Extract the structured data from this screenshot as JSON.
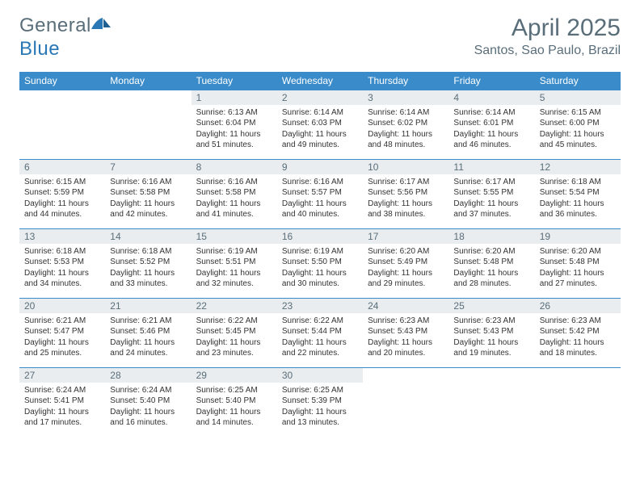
{
  "brand": {
    "part1": "General",
    "part2": "Blue"
  },
  "title": "April 2025",
  "location": "Santos, Sao Paulo, Brazil",
  "colors": {
    "header_bg": "#3a8bc9",
    "header_text": "#ffffff",
    "daynum_bg": "#e9edef",
    "muted_text": "#5a6e7a",
    "body_text": "#333333",
    "row_border": "#3a8bc9"
  },
  "typography": {
    "title_fontsize": 30,
    "location_fontsize": 16,
    "header_fontsize": 12,
    "daynum_fontsize": 12,
    "body_fontsize": 10
  },
  "weekdays": [
    "Sunday",
    "Monday",
    "Tuesday",
    "Wednesday",
    "Thursday",
    "Friday",
    "Saturday"
  ],
  "grid": {
    "rows": 5,
    "cols": 7,
    "first_weekday_index": 2,
    "days_in_month": 30
  },
  "days": {
    "1": {
      "sunrise": "6:13 AM",
      "sunset": "6:04 PM",
      "daylight": "11 hours and 51 minutes."
    },
    "2": {
      "sunrise": "6:14 AM",
      "sunset": "6:03 PM",
      "daylight": "11 hours and 49 minutes."
    },
    "3": {
      "sunrise": "6:14 AM",
      "sunset": "6:02 PM",
      "daylight": "11 hours and 48 minutes."
    },
    "4": {
      "sunrise": "6:14 AM",
      "sunset": "6:01 PM",
      "daylight": "11 hours and 46 minutes."
    },
    "5": {
      "sunrise": "6:15 AM",
      "sunset": "6:00 PM",
      "daylight": "11 hours and 45 minutes."
    },
    "6": {
      "sunrise": "6:15 AM",
      "sunset": "5:59 PM",
      "daylight": "11 hours and 44 minutes."
    },
    "7": {
      "sunrise": "6:16 AM",
      "sunset": "5:58 PM",
      "daylight": "11 hours and 42 minutes."
    },
    "8": {
      "sunrise": "6:16 AM",
      "sunset": "5:58 PM",
      "daylight": "11 hours and 41 minutes."
    },
    "9": {
      "sunrise": "6:16 AM",
      "sunset": "5:57 PM",
      "daylight": "11 hours and 40 minutes."
    },
    "10": {
      "sunrise": "6:17 AM",
      "sunset": "5:56 PM",
      "daylight": "11 hours and 38 minutes."
    },
    "11": {
      "sunrise": "6:17 AM",
      "sunset": "5:55 PM",
      "daylight": "11 hours and 37 minutes."
    },
    "12": {
      "sunrise": "6:18 AM",
      "sunset": "5:54 PM",
      "daylight": "11 hours and 36 minutes."
    },
    "13": {
      "sunrise": "6:18 AM",
      "sunset": "5:53 PM",
      "daylight": "11 hours and 34 minutes."
    },
    "14": {
      "sunrise": "6:18 AM",
      "sunset": "5:52 PM",
      "daylight": "11 hours and 33 minutes."
    },
    "15": {
      "sunrise": "6:19 AM",
      "sunset": "5:51 PM",
      "daylight": "11 hours and 32 minutes."
    },
    "16": {
      "sunrise": "6:19 AM",
      "sunset": "5:50 PM",
      "daylight": "11 hours and 30 minutes."
    },
    "17": {
      "sunrise": "6:20 AM",
      "sunset": "5:49 PM",
      "daylight": "11 hours and 29 minutes."
    },
    "18": {
      "sunrise": "6:20 AM",
      "sunset": "5:48 PM",
      "daylight": "11 hours and 28 minutes."
    },
    "19": {
      "sunrise": "6:20 AM",
      "sunset": "5:48 PM",
      "daylight": "11 hours and 27 minutes."
    },
    "20": {
      "sunrise": "6:21 AM",
      "sunset": "5:47 PM",
      "daylight": "11 hours and 25 minutes."
    },
    "21": {
      "sunrise": "6:21 AM",
      "sunset": "5:46 PM",
      "daylight": "11 hours and 24 minutes."
    },
    "22": {
      "sunrise": "6:22 AM",
      "sunset": "5:45 PM",
      "daylight": "11 hours and 23 minutes."
    },
    "23": {
      "sunrise": "6:22 AM",
      "sunset": "5:44 PM",
      "daylight": "11 hours and 22 minutes."
    },
    "24": {
      "sunrise": "6:23 AM",
      "sunset": "5:43 PM",
      "daylight": "11 hours and 20 minutes."
    },
    "25": {
      "sunrise": "6:23 AM",
      "sunset": "5:43 PM",
      "daylight": "11 hours and 19 minutes."
    },
    "26": {
      "sunrise": "6:23 AM",
      "sunset": "5:42 PM",
      "daylight": "11 hours and 18 minutes."
    },
    "27": {
      "sunrise": "6:24 AM",
      "sunset": "5:41 PM",
      "daylight": "11 hours and 17 minutes."
    },
    "28": {
      "sunrise": "6:24 AM",
      "sunset": "5:40 PM",
      "daylight": "11 hours and 16 minutes."
    },
    "29": {
      "sunrise": "6:25 AM",
      "sunset": "5:40 PM",
      "daylight": "11 hours and 14 minutes."
    },
    "30": {
      "sunrise": "6:25 AM",
      "sunset": "5:39 PM",
      "daylight": "11 hours and 13 minutes."
    }
  },
  "labels": {
    "sunrise": "Sunrise:",
    "sunset": "Sunset:",
    "daylight": "Daylight:"
  }
}
